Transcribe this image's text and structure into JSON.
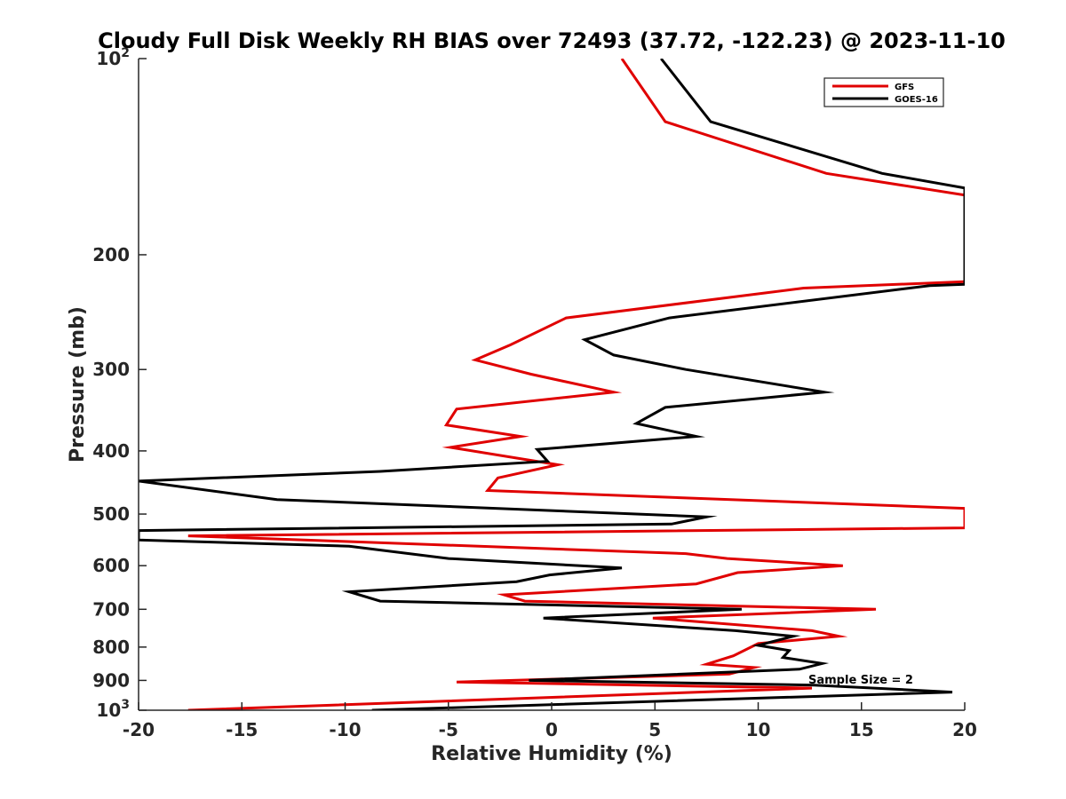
{
  "chart_data": {
    "type": "line",
    "title": "Cloudy Full Disk Weekly RH BIAS over 72493 (37.72, -122.23) @ 2023-11-10",
    "xlabel": "Relative Humidity (%)",
    "ylabel": "Pressure (mb)",
    "xlim": [
      -20,
      20
    ],
    "ylim": [
      100,
      1000
    ],
    "yscale": "log",
    "y_reversed": true,
    "grid": false,
    "legend_position": "top-right",
    "annotation": "Sample Size = 2",
    "x_ticks": [
      {
        "value": -20,
        "label": "-20"
      },
      {
        "value": -15,
        "label": "-15"
      },
      {
        "value": -10,
        "label": "-10"
      },
      {
        "value": -5,
        "label": "-5"
      },
      {
        "value": 0,
        "label": "0"
      },
      {
        "value": 5,
        "label": "5"
      },
      {
        "value": 10,
        "label": "10"
      },
      {
        "value": 15,
        "label": "15"
      },
      {
        "value": 20,
        "label": "20"
      }
    ],
    "y_ticks": [
      {
        "value": 100,
        "base": "10",
        "exp": "2"
      },
      {
        "value": 200,
        "label": "200"
      },
      {
        "value": 300,
        "label": "300"
      },
      {
        "value": 400,
        "label": "400"
      },
      {
        "value": 500,
        "label": "500"
      },
      {
        "value": 600,
        "label": "600"
      },
      {
        "value": 700,
        "label": "700"
      },
      {
        "value": 800,
        "label": "800"
      },
      {
        "value": 900,
        "label": "900"
      },
      {
        "value": 1000,
        "base": "10",
        "exp": "3"
      }
    ],
    "series": [
      {
        "name": "GFS",
        "color": "#e00000",
        "points": [
          [
            3.4,
            100
          ],
          [
            5.5,
            125
          ],
          [
            13.3,
            150
          ],
          [
            20.0,
            162
          ],
          [
            20.0,
            220
          ],
          [
            12.2,
            225
          ],
          [
            0.7,
            250
          ],
          [
            -2.0,
            275
          ],
          [
            -3.7,
            290
          ],
          [
            -1.0,
            305
          ],
          [
            3.0,
            325
          ],
          [
            -4.6,
            345
          ],
          [
            -5.1,
            365
          ],
          [
            -1.5,
            380
          ],
          [
            -4.9,
            395
          ],
          [
            0.3,
            420
          ],
          [
            -2.6,
            440
          ],
          [
            -3.1,
            460
          ],
          [
            20.0,
            490
          ],
          [
            20.0,
            525
          ],
          [
            -17.6,
            540
          ],
          [
            6.5,
            575
          ],
          [
            8.5,
            585
          ],
          [
            14.1,
            600
          ],
          [
            9.0,
            615
          ],
          [
            7.0,
            640
          ],
          [
            -2.3,
            665
          ],
          [
            -1.3,
            680
          ],
          [
            15.7,
            700
          ],
          [
            4.9,
            722
          ],
          [
            12.6,
            755
          ],
          [
            13.9,
            770
          ],
          [
            10.0,
            790
          ],
          [
            8.8,
            825
          ],
          [
            7.5,
            850
          ],
          [
            9.8,
            860
          ],
          [
            8.6,
            880
          ],
          [
            -4.6,
            905
          ],
          [
            12.6,
            925
          ],
          [
            -17.6,
            1000
          ]
        ]
      },
      {
        "name": "GOES-16",
        "color": "#000000",
        "points": [
          [
            5.3,
            100
          ],
          [
            7.7,
            125
          ],
          [
            16.0,
            150
          ],
          [
            20.0,
            158
          ],
          [
            20.0,
            222
          ],
          [
            18.3,
            223
          ],
          [
            5.7,
            250
          ],
          [
            1.6,
            270
          ],
          [
            3.0,
            285
          ],
          [
            6.5,
            300
          ],
          [
            13.2,
            325
          ],
          [
            5.5,
            343
          ],
          [
            4.1,
            363
          ],
          [
            7.0,
            380
          ],
          [
            -0.7,
            398
          ],
          [
            -0.2,
            415
          ],
          [
            -8.3,
            430
          ],
          [
            -20.0,
            445
          ],
          [
            -13.3,
            475
          ],
          [
            7.5,
            505
          ],
          [
            5.8,
            518
          ],
          [
            -20.0,
            530
          ],
          [
            -20.0,
            548
          ],
          [
            -9.8,
            560
          ],
          [
            -5.0,
            585
          ],
          [
            3.4,
            605
          ],
          [
            -0.1,
            620
          ],
          [
            -1.7,
            635
          ],
          [
            -9.8,
            658
          ],
          [
            -8.3,
            680
          ],
          [
            9.2,
            700
          ],
          [
            -0.4,
            722
          ],
          [
            8.9,
            755
          ],
          [
            11.7,
            770
          ],
          [
            10.0,
            795
          ],
          [
            11.5,
            810
          ],
          [
            11.2,
            830
          ],
          [
            13.1,
            848
          ],
          [
            12.0,
            865
          ],
          [
            -1.1,
            900
          ],
          [
            12.7,
            915
          ],
          [
            19.4,
            938
          ],
          [
            -8.7,
            1000
          ]
        ]
      }
    ]
  }
}
